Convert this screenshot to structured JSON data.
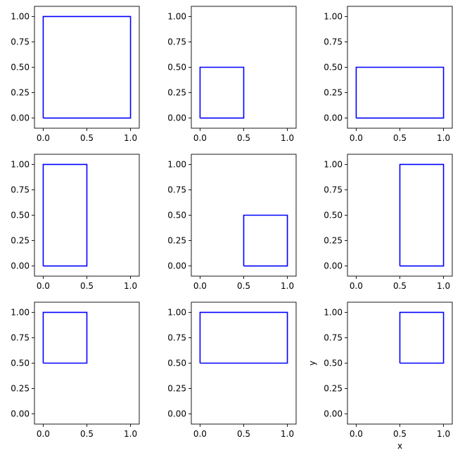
{
  "colors": {
    "rect": "#0000ff",
    "frame": "#000000",
    "background": "#ffffff"
  },
  "chart_data": [
    {
      "type": "line",
      "xlim": [
        -0.1,
        1.1
      ],
      "ylim": [
        -0.1,
        1.1
      ],
      "x_ticks": [
        "0.0",
        "0.5",
        "1.0"
      ],
      "y_ticks": [
        "0.00",
        "0.25",
        "0.50",
        "0.75",
        "1.00"
      ],
      "series": [
        {
          "x": [
            0,
            1,
            1,
            0,
            0
          ],
          "y": [
            0,
            0,
            1,
            1,
            0
          ]
        }
      ],
      "xlabel": "",
      "ylabel": "",
      "grid": false
    },
    {
      "type": "line",
      "xlim": [
        -0.1,
        1.1
      ],
      "ylim": [
        -0.1,
        1.1
      ],
      "x_ticks": [
        "0.0",
        "0.5",
        "1.0"
      ],
      "y_ticks": [
        "0.00",
        "0.25",
        "0.50",
        "0.75",
        "1.00"
      ],
      "series": [
        {
          "x": [
            0,
            0.5,
            0.5,
            0,
            0
          ],
          "y": [
            0,
            0,
            0.5,
            0.5,
            0
          ]
        }
      ],
      "xlabel": "",
      "ylabel": "",
      "grid": false
    },
    {
      "type": "line",
      "xlim": [
        -0.1,
        1.1
      ],
      "ylim": [
        -0.1,
        1.1
      ],
      "x_ticks": [
        "0.0",
        "0.5",
        "1.0"
      ],
      "y_ticks": [
        "0.00",
        "0.25",
        "0.50",
        "0.75",
        "1.00"
      ],
      "series": [
        {
          "x": [
            0,
            1,
            1,
            0,
            0
          ],
          "y": [
            0,
            0,
            0.5,
            0.5,
            0
          ]
        }
      ],
      "xlabel": "",
      "ylabel": "",
      "grid": false
    },
    {
      "type": "line",
      "xlim": [
        -0.1,
        1.1
      ],
      "ylim": [
        -0.1,
        1.1
      ],
      "x_ticks": [
        "0.0",
        "0.5",
        "1.0"
      ],
      "y_ticks": [
        "0.00",
        "0.25",
        "0.50",
        "0.75",
        "1.00"
      ],
      "series": [
        {
          "x": [
            0,
            0.5,
            0.5,
            0,
            0
          ],
          "y": [
            0,
            0,
            1,
            1,
            0
          ]
        }
      ],
      "xlabel": "",
      "ylabel": "",
      "grid": false
    },
    {
      "type": "line",
      "xlim": [
        -0.1,
        1.1
      ],
      "ylim": [
        -0.1,
        1.1
      ],
      "x_ticks": [
        "0.0",
        "0.5",
        "1.0"
      ],
      "y_ticks": [
        "0.00",
        "0.25",
        "0.50",
        "0.75",
        "1.00"
      ],
      "series": [
        {
          "x": [
            0.5,
            1,
            1,
            0.5,
            0.5
          ],
          "y": [
            0,
            0,
            0.5,
            0.5,
            0
          ]
        }
      ],
      "xlabel": "",
      "ylabel": "",
      "grid": false
    },
    {
      "type": "line",
      "xlim": [
        -0.1,
        1.1
      ],
      "ylim": [
        -0.1,
        1.1
      ],
      "x_ticks": [
        "0.0",
        "0.5",
        "1.0"
      ],
      "y_ticks": [
        "0.00",
        "0.25",
        "0.50",
        "0.75",
        "1.00"
      ],
      "series": [
        {
          "x": [
            0.5,
            1,
            1,
            0.5,
            0.5
          ],
          "y": [
            0,
            0,
            1,
            1,
            0
          ]
        }
      ],
      "xlabel": "",
      "ylabel": "",
      "grid": false
    },
    {
      "type": "line",
      "xlim": [
        -0.1,
        1.1
      ],
      "ylim": [
        -0.1,
        1.1
      ],
      "x_ticks": [
        "0.0",
        "0.5",
        "1.0"
      ],
      "y_ticks": [
        "0.00",
        "0.25",
        "0.50",
        "0.75",
        "1.00"
      ],
      "series": [
        {
          "x": [
            0,
            0.5,
            0.5,
            0,
            0
          ],
          "y": [
            0.5,
            0.5,
            1,
            1,
            0.5
          ]
        }
      ],
      "xlabel": "",
      "ylabel": "",
      "grid": false
    },
    {
      "type": "line",
      "xlim": [
        -0.1,
        1.1
      ],
      "ylim": [
        -0.1,
        1.1
      ],
      "x_ticks": [
        "0.0",
        "0.5",
        "1.0"
      ],
      "y_ticks": [
        "0.00",
        "0.25",
        "0.50",
        "0.75",
        "1.00"
      ],
      "series": [
        {
          "x": [
            0,
            1,
            1,
            0,
            0
          ],
          "y": [
            0.5,
            0.5,
            1,
            1,
            0.5
          ]
        }
      ],
      "xlabel": "",
      "ylabel": "",
      "grid": false
    },
    {
      "type": "line",
      "xlim": [
        -0.1,
        1.1
      ],
      "ylim": [
        -0.1,
        1.1
      ],
      "x_ticks": [
        "0.0",
        "0.5",
        "1.0"
      ],
      "y_ticks": [
        "0.00",
        "0.25",
        "0.50",
        "0.75",
        "1.00"
      ],
      "series": [
        {
          "x": [
            0.5,
            1,
            1,
            0.5,
            0.5
          ],
          "y": [
            0.5,
            0.5,
            1,
            1,
            0.5
          ]
        }
      ],
      "xlabel": "x",
      "ylabel": "y",
      "grid": false
    }
  ]
}
